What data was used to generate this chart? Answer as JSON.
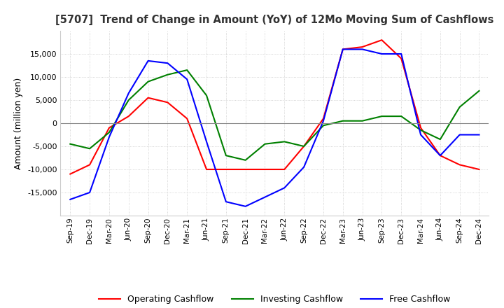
{
  "title": "[5707]  Trend of Change in Amount (YoY) of 12Mo Moving Sum of Cashflows",
  "ylabel": "Amount (million yen)",
  "x_labels": [
    "Sep-19",
    "Dec-19",
    "Mar-20",
    "Jun-20",
    "Sep-20",
    "Dec-20",
    "Mar-21",
    "Jun-21",
    "Sep-21",
    "Dec-21",
    "Mar-22",
    "Jun-22",
    "Sep-22",
    "Dec-22",
    "Mar-23",
    "Jun-23",
    "Sep-23",
    "Dec-23",
    "Mar-24",
    "Jun-24",
    "Sep-24",
    "Dec-24"
  ],
  "operating": [
    -11000,
    -9000,
    -1000,
    1500,
    5500,
    4500,
    1000,
    -10000,
    -10000,
    -10000,
    -10000,
    -10000,
    -5000,
    1000,
    16000,
    16500,
    18000,
    14000,
    -1000,
    -7000,
    -9000,
    -10000
  ],
  "investing": [
    -4500,
    -5500,
    -2000,
    5000,
    9000,
    10500,
    11500,
    6000,
    -7000,
    -8000,
    -4500,
    -4000,
    -5000,
    -500,
    500,
    500,
    1500,
    1500,
    -1500,
    -3500,
    3500,
    7000
  ],
  "free": [
    -16500,
    -15000,
    -3000,
    6500,
    13500,
    13000,
    9500,
    -4000,
    -17000,
    -18000,
    -16000,
    -14000,
    -9500,
    500,
    16000,
    16000,
    15000,
    15000,
    -2500,
    -7000,
    -2500,
    -2500
  ],
  "operating_color": "#ff0000",
  "investing_color": "#008000",
  "free_color": "#0000ff",
  "ylim": [
    -20000,
    20000
  ],
  "yticks": [
    -15000,
    -10000,
    -5000,
    0,
    5000,
    10000,
    15000
  ],
  "legend_labels": [
    "Operating Cashflow",
    "Investing Cashflow",
    "Free Cashflow"
  ],
  "background_color": "#ffffff",
  "grid_color": "#c8c8c8"
}
